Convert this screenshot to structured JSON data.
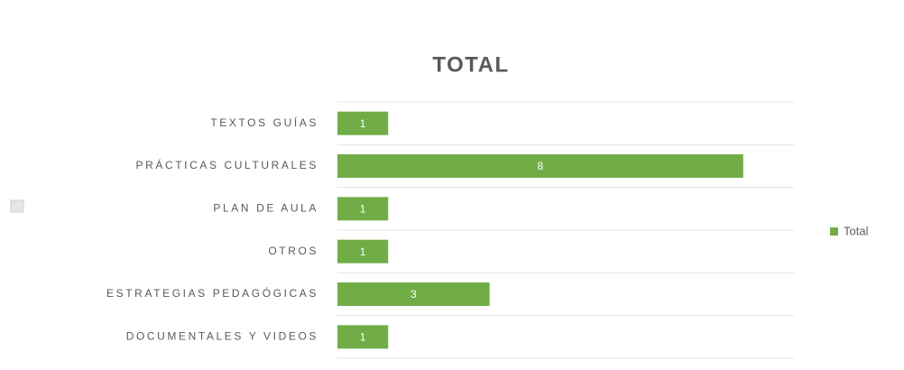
{
  "chart_data": {
    "type": "hbar",
    "title": "TOTAL",
    "categories": [
      "TEXTOS GUÍAS",
      "PRÁCTICAS CULTURALES",
      "PLAN DE AULA",
      "OTROS",
      "ESTRATEGIAS PEDAGÓGICAS",
      "DOCUMENTALES Y VIDEOS"
    ],
    "series": [
      {
        "name": "Total",
        "color": "#70ad47",
        "values": [
          1,
          8,
          1,
          1,
          3,
          1
        ]
      }
    ],
    "xlim": [
      0,
      9
    ],
    "legend": "right"
  }
}
